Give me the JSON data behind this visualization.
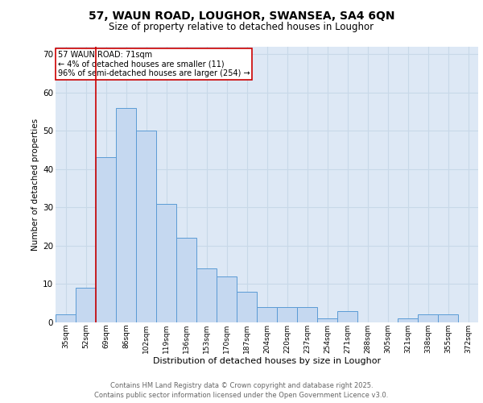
{
  "title1": "57, WAUN ROAD, LOUGHOR, SWANSEA, SA4 6QN",
  "title2": "Size of property relative to detached houses in Loughor",
  "xlabel": "Distribution of detached houses by size in Loughor",
  "ylabel": "Number of detached properties",
  "categories": [
    "35sqm",
    "52sqm",
    "69sqm",
    "86sqm",
    "102sqm",
    "119sqm",
    "136sqm",
    "153sqm",
    "170sqm",
    "187sqm",
    "204sqm",
    "220sqm",
    "237sqm",
    "254sqm",
    "271sqm",
    "288sqm",
    "305sqm",
    "321sqm",
    "338sqm",
    "355sqm",
    "372sqm"
  ],
  "values": [
    2,
    9,
    43,
    56,
    50,
    31,
    22,
    14,
    12,
    8,
    4,
    4,
    4,
    1,
    3,
    0,
    0,
    1,
    2,
    2,
    0
  ],
  "bar_color": "#c5d8f0",
  "bar_edge_color": "#5b9bd5",
  "highlight_index": 2,
  "highlight_line_color": "#cc0000",
  "annotation_text": "57 WAUN ROAD: 71sqm\n← 4% of detached houses are smaller (11)\n96% of semi-detached houses are larger (254) →",
  "annotation_box_color": "#ffffff",
  "annotation_box_edge": "#cc0000",
  "ylim": [
    0,
    72
  ],
  "yticks": [
    0,
    10,
    20,
    30,
    40,
    50,
    60,
    70
  ],
  "grid_color": "#c8d8e8",
  "bg_color": "#dde8f5",
  "footer_line1": "Contains HM Land Registry data © Crown copyright and database right 2025.",
  "footer_line2": "Contains public sector information licensed under the Open Government Licence v3.0."
}
